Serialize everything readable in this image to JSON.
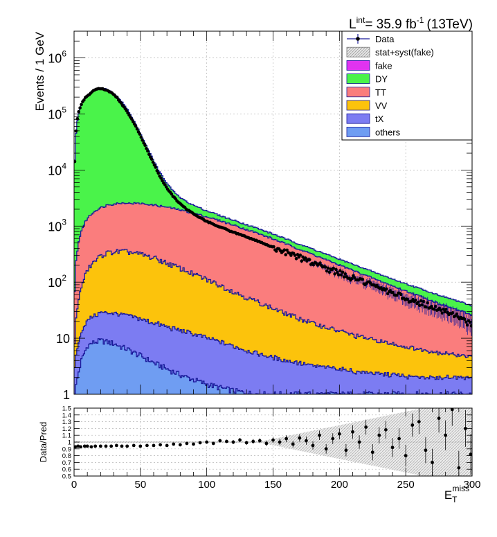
{
  "lumi": {
    "prefix": "L",
    "sup": "int",
    "value": "= 35.9 fb",
    "unit_sup": "-1",
    "energy": "(13TeV)"
  },
  "chart_data": [
    {
      "type": "area",
      "stacked": true,
      "log_y": true,
      "ylabel": "Events / 1 GeV",
      "xlim": [
        0,
        300
      ],
      "ylim": [
        1,
        3000000
      ],
      "yticks_major": [
        {
          "value": 1,
          "label": "1"
        },
        {
          "value": 10,
          "label": "10"
        },
        {
          "value": 100,
          "label": "10",
          "exp": "2"
        },
        {
          "value": 1000,
          "label": "10",
          "exp": "3"
        },
        {
          "value": 10000,
          "label": "10",
          "exp": "4"
        },
        {
          "value": 100000,
          "label": "10",
          "exp": "5"
        },
        {
          "value": 1000000,
          "label": "10",
          "exp": "6"
        }
      ],
      "grid": true,
      "legend_position": "top-right",
      "legend": [
        {
          "name": "Data",
          "kind": "marker",
          "color": "#0a0a3a"
        },
        {
          "name": "stat+syst(fake)",
          "kind": "hatch",
          "color": "#bfbfbf"
        },
        {
          "name": "fake",
          "kind": "fill",
          "color": "#e033f0"
        },
        {
          "name": "DY",
          "kind": "fill",
          "color": "#4af34a"
        },
        {
          "name": "TT",
          "kind": "fill",
          "color": "#fa7d7d"
        },
        {
          "name": "VV",
          "kind": "fill",
          "color": "#fcc30c"
        },
        {
          "name": "tX",
          "kind": "fill",
          "color": "#7c7cf2"
        },
        {
          "name": "others",
          "kind": "fill",
          "color": "#6f9df2"
        }
      ],
      "stack_order_bottom_to_top": [
        "others",
        "tX",
        "VV",
        "TT",
        "DY"
      ],
      "series": [
        {
          "name": "others",
          "x": [
            0,
            1,
            3,
            5,
            8,
            10,
            15,
            20,
            25,
            30,
            35,
            40,
            50,
            60,
            70,
            80,
            90,
            100,
            110,
            120,
            130,
            140,
            150,
            160,
            170,
            180,
            190,
            200,
            210,
            220,
            230,
            240,
            250,
            260,
            270,
            280,
            290,
            300
          ],
          "values": [
            1,
            1.5,
            2.5,
            4,
            6,
            7.5,
            8.5,
            9,
            8.5,
            8,
            7,
            6.3,
            4.8,
            3.6,
            2.8,
            2.2,
            1.8,
            1.5,
            1.3,
            1.15,
            1.05,
            1,
            1,
            1,
            1,
            1,
            1,
            1,
            1,
            1,
            1,
            1,
            1,
            1,
            1,
            1,
            1,
            1
          ]
        },
        {
          "name": "tX",
          "x": [
            0,
            1,
            3,
            5,
            8,
            10,
            15,
            20,
            25,
            30,
            35,
            40,
            50,
            60,
            70,
            80,
            90,
            100,
            110,
            120,
            130,
            140,
            150,
            160,
            170,
            180,
            190,
            200,
            210,
            220,
            230,
            240,
            250,
            260,
            270,
            280,
            290,
            300
          ],
          "values": [
            2,
            3.5,
            6,
            9,
            12,
            14,
            17,
            19,
            20,
            20,
            19.5,
            19,
            17,
            15,
            13,
            11.5,
            10,
            8.5,
            7.2,
            6,
            5,
            4.2,
            3.5,
            3,
            2.6,
            2.2,
            2,
            1.8,
            1.6,
            1.4,
            1.3,
            1.2,
            1.1,
            1.05,
            1,
            1,
            1,
            1
          ]
        },
        {
          "name": "VV",
          "x": [
            0,
            1,
            3,
            5,
            8,
            10,
            15,
            20,
            25,
            30,
            35,
            40,
            50,
            60,
            70,
            80,
            90,
            100,
            110,
            120,
            130,
            140,
            150,
            160,
            170,
            180,
            190,
            200,
            210,
            220,
            230,
            240,
            250,
            260,
            270,
            280,
            290,
            300
          ],
          "values": [
            5,
            18,
            40,
            70,
            115,
            150,
            210,
            270,
            305,
            320,
            325,
            320,
            290,
            250,
            200,
            160,
            125,
            100,
            78,
            60,
            47,
            37,
            29,
            23,
            18.5,
            15,
            12.5,
            10.5,
            8.8,
            7.5,
            6.5,
            5.6,
            4.9,
            4.3,
            3.8,
            3.4,
            3,
            2.6
          ]
        },
        {
          "name": "TT",
          "x": [
            0,
            1,
            3,
            5,
            8,
            10,
            15,
            20,
            25,
            30,
            35,
            40,
            50,
            60,
            70,
            80,
            90,
            100,
            110,
            120,
            130,
            140,
            150,
            160,
            170,
            180,
            190,
            200,
            210,
            220,
            230,
            240,
            250,
            260,
            270,
            280,
            290,
            300
          ],
          "values": [
            60,
            220,
            480,
            750,
            1050,
            1250,
            1600,
            1850,
            2050,
            2150,
            2200,
            2220,
            2200,
            2100,
            1950,
            1750,
            1550,
            1340,
            1150,
            970,
            810,
            670,
            550,
            445,
            360,
            290,
            232,
            186,
            150,
            120,
            96,
            77,
            62,
            50,
            40,
            32,
            26,
            21
          ]
        },
        {
          "name": "DY",
          "x": [
            0,
            1,
            2,
            3,
            4,
            5,
            6,
            8,
            10,
            12,
            15,
            18,
            20,
            22,
            25,
            30,
            35,
            40,
            45,
            50,
            55,
            60,
            65,
            70,
            75,
            80,
            85,
            90,
            95,
            100,
            110,
            120,
            130,
            140,
            150,
            160,
            170,
            180,
            190,
            200,
            210,
            220,
            230,
            240,
            250,
            260,
            270,
            280,
            290,
            300
          ],
          "values": [
            15000,
            45000,
            75000,
            100000,
            120000,
            140000,
            160000,
            190000,
            215000,
            235000,
            260000,
            280000,
            285000,
            282000,
            270000,
            225000,
            170000,
            115000,
            70000,
            40000,
            22000,
            11500,
            6200,
            3400,
            2000,
            1250,
            880,
            650,
            500,
            410,
            290,
            230,
            190,
            158,
            130,
            108,
            90,
            76,
            64,
            54,
            46,
            39,
            33,
            28,
            24,
            21,
            18,
            16,
            14,
            12
          ]
        }
      ],
      "data_series": {
        "name": "Data",
        "x": [
          0.5,
          1.5,
          2.5,
          3.5,
          4.5,
          5.5,
          7,
          9,
          11,
          13,
          15,
          17,
          19,
          21,
          23,
          25,
          28,
          32,
          36,
          40,
          45,
          50,
          55,
          60,
          65,
          70,
          75,
          80,
          85,
          90,
          95,
          100,
          110,
          120,
          130,
          140,
          150,
          160,
          170,
          180,
          190,
          200,
          210,
          220,
          230,
          240,
          250,
          260,
          270,
          280,
          290,
          298
        ],
        "values": [
          14000,
          50000,
          82000,
          108000,
          128000,
          150000,
          175000,
          200000,
          220000,
          240000,
          262000,
          278000,
          282000,
          281000,
          276000,
          265000,
          240000,
          200000,
          150000,
          110000,
          70000,
          41000,
          23000,
          13000,
          7500,
          4700,
          3300,
          2500,
          2000,
          1650,
          1400,
          1220,
          960,
          780,
          640,
          520,
          420,
          340,
          275,
          222,
          180,
          145,
          118,
          96,
          79,
          65,
          52,
          44,
          36,
          30,
          25,
          18
        ]
      }
    },
    {
      "type": "scatter",
      "ylabel": "Data/Pred",
      "xlabel": "E",
      "xlabel_sub": "T",
      "xlabel_sup": "miss",
      "xlim": [
        0,
        300
      ],
      "ylim": [
        0.5,
        1.5
      ],
      "grid": true,
      "xticks": [
        0,
        50,
        100,
        150,
        200,
        250,
        300
      ],
      "yticks": [
        "0.5",
        "0.6",
        "0.7",
        "0.8",
        "0.9",
        "1",
        "1.1",
        "1.2",
        "1.3",
        "1.4",
        "1.5"
      ],
      "x": [
        1,
        3,
        5,
        8,
        10,
        13,
        16,
        20,
        24,
        28,
        32,
        36,
        40,
        45,
        50,
        55,
        60,
        65,
        70,
        75,
        80,
        85,
        90,
        95,
        100,
        105,
        110,
        115,
        120,
        125,
        130,
        135,
        140,
        145,
        150,
        155,
        160,
        165,
        170,
        175,
        180,
        185,
        190,
        195,
        200,
        205,
        210,
        215,
        220,
        225,
        230,
        235,
        240,
        245,
        250,
        255,
        260,
        265,
        270,
        275,
        280,
        285,
        290,
        295,
        299
      ],
      "values": [
        0.93,
        0.94,
        0.93,
        0.94,
        0.94,
        0.93,
        0.94,
        0.94,
        0.94,
        0.94,
        0.95,
        0.94,
        0.94,
        0.95,
        0.94,
        0.95,
        0.95,
        0.96,
        0.95,
        0.97,
        0.96,
        0.98,
        0.97,
        0.99,
        1.0,
        0.98,
        1.02,
        1.01,
        1.0,
        1.03,
        0.99,
        1.01,
        1.02,
        0.98,
        1.03,
        1.0,
        1.05,
        0.97,
        1.06,
        1.02,
        0.95,
        1.1,
        0.9,
        1.05,
        1.12,
        0.88,
        1.15,
        1.0,
        1.22,
        0.85,
        1.1,
        1.18,
        0.92,
        1.05,
        0.8,
        1.25,
        1.3,
        0.88,
        0.7,
        1.35,
        1.1,
        1.48,
        0.62,
        1.2,
        0.82
      ],
      "errors": [
        0.01,
        0.01,
        0.01,
        0.01,
        0.01,
        0.01,
        0.01,
        0.01,
        0.01,
        0.01,
        0.01,
        0.01,
        0.01,
        0.01,
        0.01,
        0.01,
        0.01,
        0.01,
        0.01,
        0.015,
        0.015,
        0.015,
        0.02,
        0.02,
        0.02,
        0.02,
        0.025,
        0.025,
        0.03,
        0.03,
        0.03,
        0.035,
        0.035,
        0.04,
        0.04,
        0.045,
        0.05,
        0.05,
        0.055,
        0.06,
        0.06,
        0.07,
        0.07,
        0.08,
        0.08,
        0.09,
        0.1,
        0.1,
        0.11,
        0.12,
        0.12,
        0.13,
        0.14,
        0.15,
        0.16,
        0.17,
        0.18,
        0.19,
        0.2,
        0.21,
        0.22,
        0.24,
        0.25,
        0.27,
        0.3
      ]
    }
  ]
}
